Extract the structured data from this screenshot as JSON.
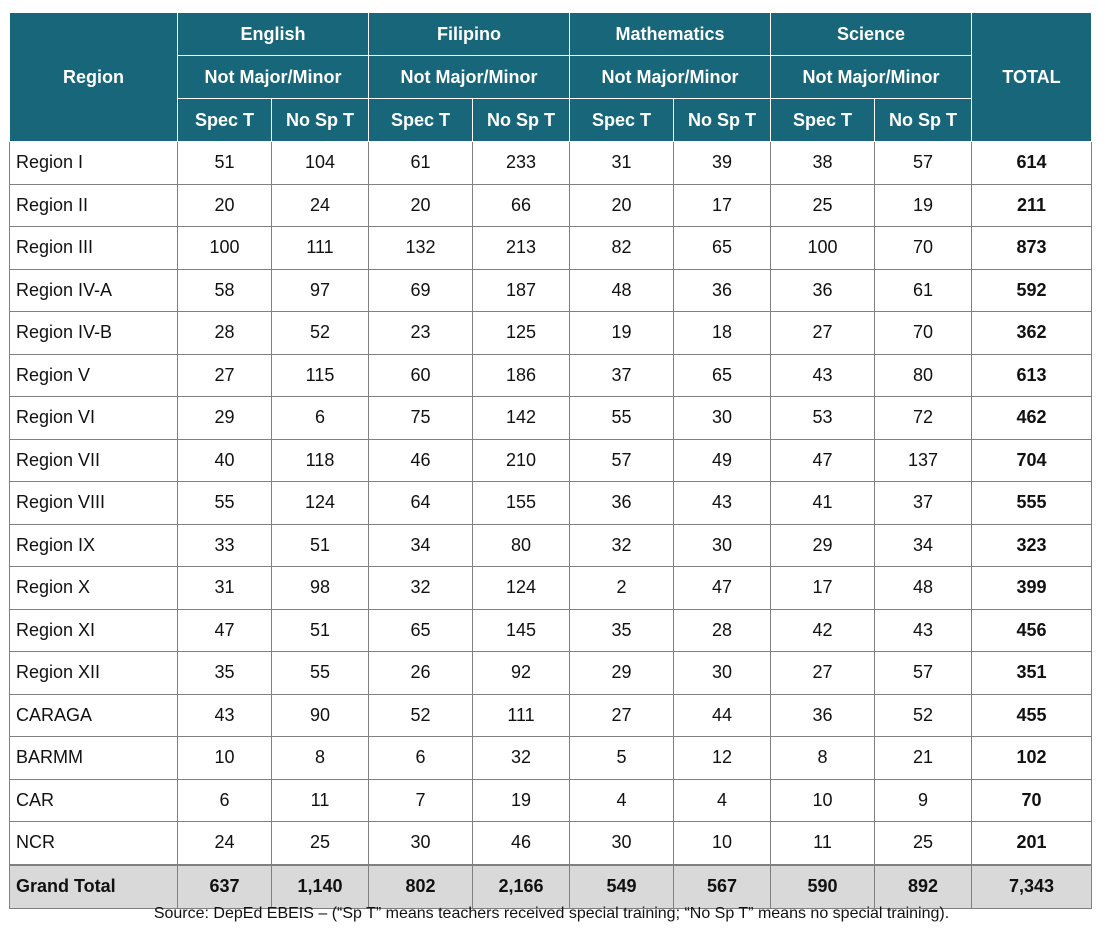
{
  "header": {
    "region": "Region",
    "total": "TOTAL",
    "subjects": [
      "English",
      "Filipino",
      "Mathematics",
      "Science"
    ],
    "group": "Not Major/Minor",
    "spec": "Spec T",
    "nosp": "No Sp T"
  },
  "rows": [
    [
      "Region I",
      "51",
      "104",
      "61",
      "233",
      "31",
      "39",
      "38",
      "57",
      "614"
    ],
    [
      "Region II",
      "20",
      "24",
      "20",
      "66",
      "20",
      "17",
      "25",
      "19",
      "211"
    ],
    [
      "Region III",
      "100",
      "111",
      "132",
      "213",
      "82",
      "65",
      "100",
      "70",
      "873"
    ],
    [
      "Region IV-A",
      "58",
      "97",
      "69",
      "187",
      "48",
      "36",
      "36",
      "61",
      "592"
    ],
    [
      "Region IV-B",
      "28",
      "52",
      "23",
      "125",
      "19",
      "18",
      "27",
      "70",
      "362"
    ],
    [
      "Region V",
      "27",
      "115",
      "60",
      "186",
      "37",
      "65",
      "43",
      "80",
      "613"
    ],
    [
      "Region VI",
      "29",
      "6",
      "75",
      "142",
      "55",
      "30",
      "53",
      "72",
      "462"
    ],
    [
      "Region VII",
      "40",
      "118",
      "46",
      "210",
      "57",
      "49",
      "47",
      "137",
      "704"
    ],
    [
      "Region VIII",
      "55",
      "124",
      "64",
      "155",
      "36",
      "43",
      "41",
      "37",
      "555"
    ],
    [
      "Region IX",
      "33",
      "51",
      "34",
      "80",
      "32",
      "30",
      "29",
      "34",
      "323"
    ],
    [
      "Region X",
      "31",
      "98",
      "32",
      "124",
      "2",
      "47",
      "17",
      "48",
      "399"
    ],
    [
      "Region XI",
      "47",
      "51",
      "65",
      "145",
      "35",
      "28",
      "42",
      "43",
      "456"
    ],
    [
      "Region XII",
      "35",
      "55",
      "26",
      "92",
      "29",
      "30",
      "27",
      "57",
      "351"
    ],
    [
      "CARAGA",
      "43",
      "90",
      "52",
      "111",
      "27",
      "44",
      "36",
      "52",
      "455"
    ],
    [
      "BARMM",
      "10",
      "8",
      "6",
      "32",
      "5",
      "12",
      "8",
      "21",
      "102"
    ],
    [
      "CAR",
      "6",
      "11",
      "7",
      "19",
      "4",
      "4",
      "10",
      "9",
      "70"
    ],
    [
      "NCR",
      "24",
      "25",
      "30",
      "46",
      "30",
      "10",
      "11",
      "25",
      "201"
    ]
  ],
  "grand_total": [
    "Grand Total",
    "637",
    "1,140",
    "802",
    "2,166",
    "549",
    "567",
    "590",
    "892",
    "7,343"
  ],
  "source": "Source: DepEd EBEIS – (“Sp T” means teachers received special training; “No Sp T” means no special training)."
}
